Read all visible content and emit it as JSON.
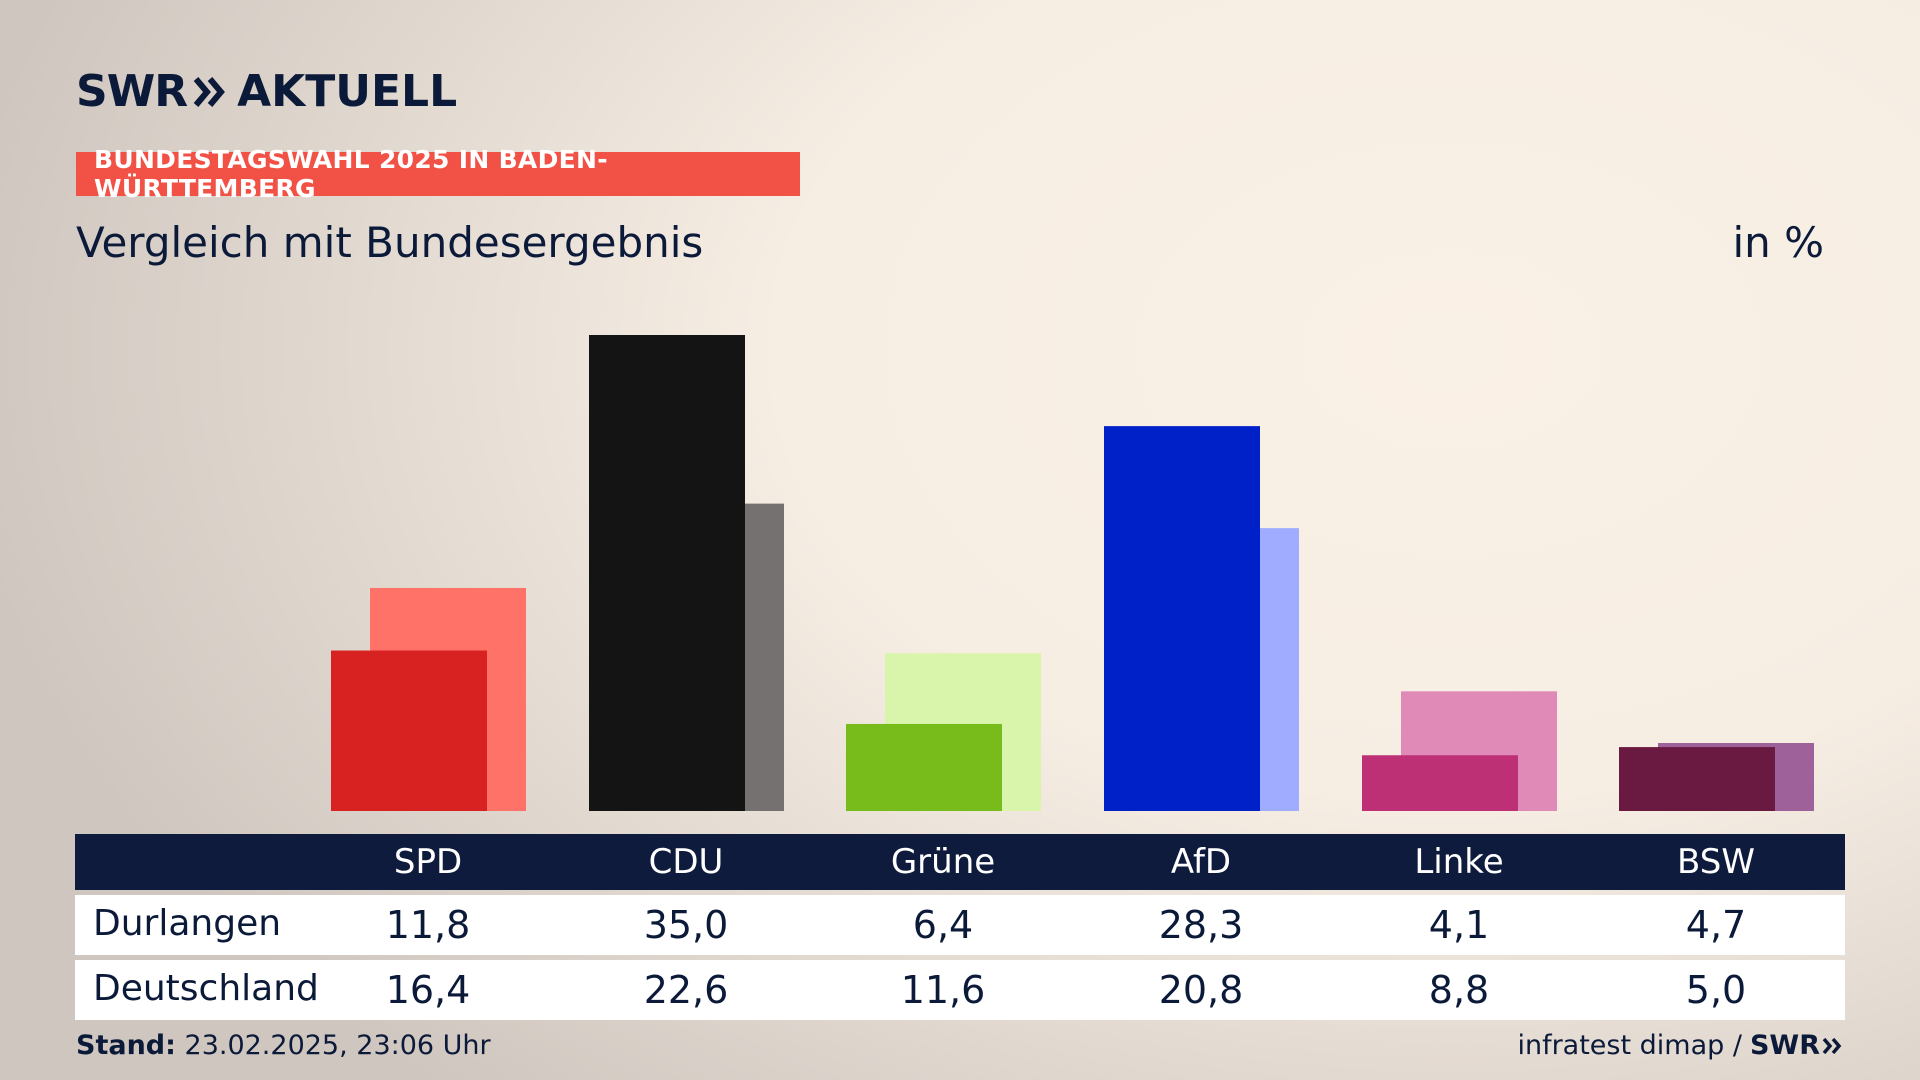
{
  "brand": {
    "logo_left": "SWR",
    "logo_right": "AKTUELL"
  },
  "banner": "BUNDESTAGSWAHL 2025 IN BADEN-WÜRTTEMBERG",
  "subtitle": "Vergleich mit Bundesergebnis",
  "unit": "in %",
  "table": {
    "row_labels": [
      "Durlangen",
      "Deutschland"
    ],
    "parties": [
      "SPD",
      "CDU",
      "Grüne",
      "AfD",
      "Linke",
      "BSW"
    ],
    "local_values": [
      "11,8",
      "35,0",
      "6,4",
      "28,3",
      "4,1",
      "4,7"
    ],
    "national_values": [
      "16,4",
      "22,6",
      "11,6",
      "20,8",
      "8,8",
      "5,0"
    ]
  },
  "footer": {
    "stand_label": "Stand:",
    "stand_value": "23.02.2025, 23:06 Uhr",
    "source": "infratest dimap /",
    "source_logo": "SWR"
  },
  "colors": {
    "local": [
      "#d82221",
      "#141414",
      "#78bc1b",
      "#0021c8",
      "#be3075",
      "#6a1a40"
    ],
    "national": [
      "#ff7268",
      "#747170",
      "#d8f5ab",
      "#a0acff",
      "#e08ab8",
      "#9e6199"
    ],
    "banner": "#f25146",
    "header": "#0e1b3c"
  },
  "chart_data": {
    "type": "bar",
    "categories": [
      "SPD",
      "CDU",
      "Grüne",
      "AfD",
      "Linke",
      "BSW"
    ],
    "series": [
      {
        "name": "Durlangen",
        "values": [
          11.8,
          35.0,
          6.4,
          28.3,
          4.1,
          4.7
        ]
      },
      {
        "name": "Deutschland",
        "values": [
          16.4,
          22.6,
          11.6,
          20.8,
          8.8,
          5.0
        ]
      }
    ],
    "title": "Vergleich mit Bundesergebnis",
    "ylabel": "in %",
    "ylim": [
      0,
      35
    ]
  }
}
